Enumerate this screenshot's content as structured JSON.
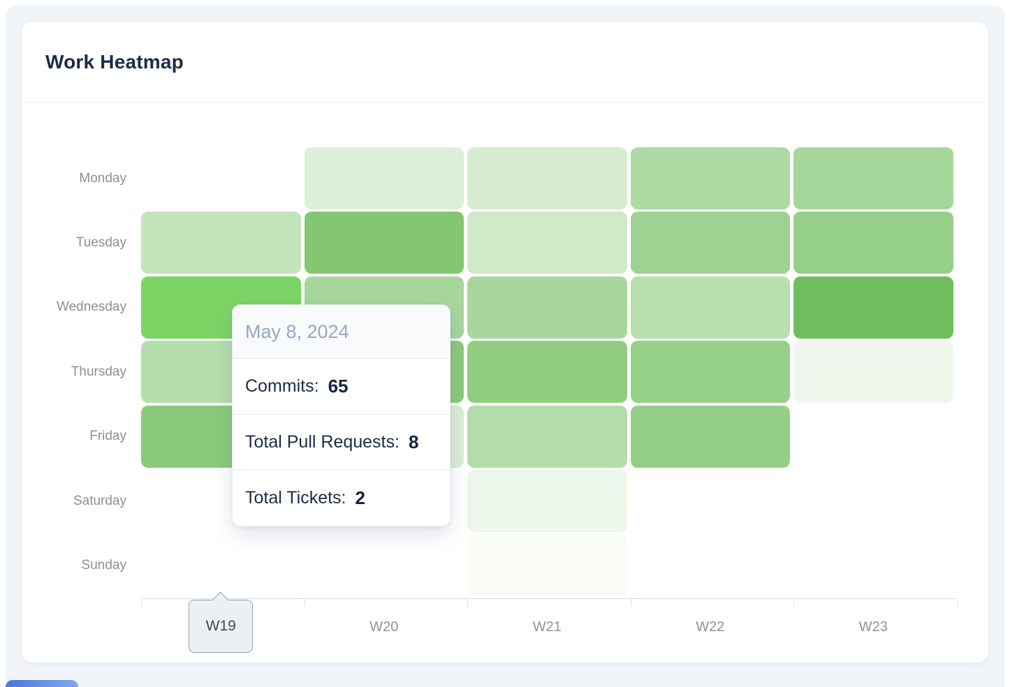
{
  "window": {
    "background": "#ffffff",
    "panel_background": "#f1f4f8",
    "accent_peek_color": "#4b74dd"
  },
  "card": {
    "title": "Work Heatmap",
    "title_color": "#1c2b49",
    "border_color": "#e9ecf1"
  },
  "chart_data": {
    "type": "heatmap",
    "title": "Work Heatmap",
    "x_labels": [
      "W19",
      "W20",
      "W21",
      "W22",
      "W23"
    ],
    "y_labels": [
      "Monday",
      "Tuesday",
      "Wednesday",
      "Thursday",
      "Friday",
      "Saturday",
      "Sunday"
    ],
    "selected_week": "W19",
    "grid": "off",
    "legend": "none",
    "axis": {
      "line_color": "#d9dde2",
      "label_color": "#8d929b",
      "day_label_color": "#8a9097"
    },
    "color_scale": {
      "low": "#f8fbf6",
      "high": "#6fbe5d",
      "highlight": "#7cd465"
    },
    "cell_colors": [
      [
        null,
        "#dcefd8",
        "#d5eccf",
        "#aedaa4",
        "#a5d79b"
      ],
      [
        "#c3e4bb",
        "#83c773",
        "#cfe9c9",
        "#9ed293",
        "#95cf88"
      ],
      [
        "#7cd465",
        "#a7d69d",
        "#a8d79d",
        "#b8dfae",
        "#6fbe5d"
      ],
      [
        "#b6deac",
        "#8dca7d",
        "#90cd81",
        "#97d089",
        "#eff7ec"
      ],
      [
        "#8bc97b",
        "#daeed4",
        "#b3dcaa",
        "#95cf87",
        null
      ],
      [
        null,
        null,
        "#edf6ea",
        null,
        null
      ],
      [
        null,
        null,
        "#f8fbf6",
        null,
        null
      ]
    ],
    "tooltip": {
      "date": "May 8, 2024",
      "anchor": {
        "day": "Wednesday",
        "week": "W19"
      },
      "metrics": [
        {
          "label": "Commits:",
          "value": "65"
        },
        {
          "label": "Total Pull Requests:",
          "value": "8"
        },
        {
          "label": "Total Tickets:",
          "value": "2"
        }
      ]
    }
  }
}
